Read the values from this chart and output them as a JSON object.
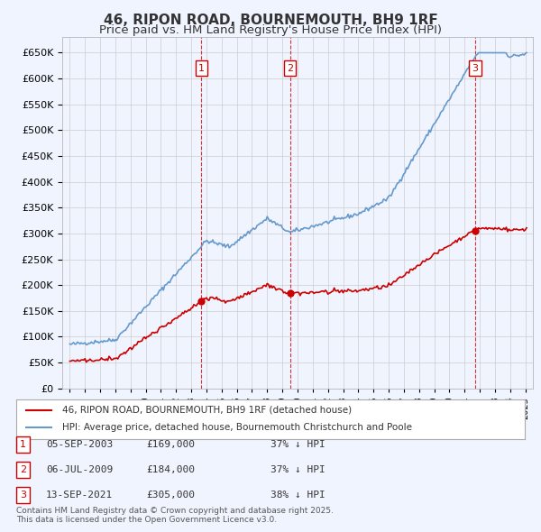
{
  "title": "46, RIPON ROAD, BOURNEMOUTH, BH9 1RF",
  "subtitle": "Price paid vs. HM Land Registry's House Price Index (HPI)",
  "title_fontsize": 11,
  "subtitle_fontsize": 9.5,
  "bg_color": "#f0f4ff",
  "plot_bg_color": "#f0f4ff",
  "grid_color": "#cccccc",
  "hpi_color": "#6699cc",
  "price_color": "#cc0000",
  "transactions": [
    {
      "num": 1,
      "date_label": "05-SEP-2003",
      "date_x": 2003.67,
      "price": 169000,
      "pct": "37% ↓ HPI"
    },
    {
      "num": 2,
      "date_label": "06-JUL-2009",
      "date_x": 2009.5,
      "price": 184000,
      "pct": "37% ↓ HPI"
    },
    {
      "num": 3,
      "date_label": "13-SEP-2021",
      "date_x": 2021.7,
      "price": 305000,
      "pct": "38% ↓ HPI"
    }
  ],
  "legend_line1": "46, RIPON ROAD, BOURNEMOUTH, BH9 1RF (detached house)",
  "legend_line2": "HPI: Average price, detached house, Bournemouth Christchurch and Poole",
  "footnote": "Contains HM Land Registry data © Crown copyright and database right 2025.\nThis data is licensed under the Open Government Licence v3.0.",
  "ylim": [
    0,
    680000
  ],
  "yticks": [
    0,
    50000,
    100000,
    150000,
    200000,
    250000,
    300000,
    350000,
    400000,
    450000,
    500000,
    550000,
    600000,
    650000
  ],
  "xlim": [
    1994.5,
    2025.5
  ]
}
